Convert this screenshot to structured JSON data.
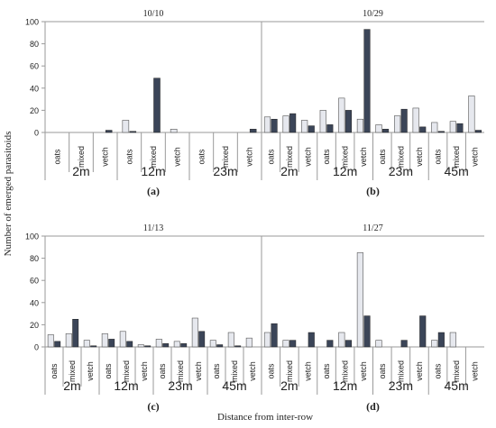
{
  "figure": {
    "y_axis_label": "Number of emerged parasitoids",
    "x_axis_label": "Distance from inter-row",
    "colors": {
      "series_light": "#e6e8ee",
      "series_dark": "#3b4558",
      "stroke": "#555555",
      "axis": "#9a9a9a"
    }
  },
  "chart_data": [
    {
      "type": "bar",
      "panel_label": "(a)",
      "title": "10/10",
      "ylim": [
        0,
        100
      ],
      "yticks": [
        0,
        20,
        40,
        60,
        80,
        100
      ],
      "groups": [
        {
          "label": "2m",
          "categories": [
            "oats",
            "mixed",
            "vetch"
          ],
          "light": [
            0,
            0,
            0
          ],
          "dark": [
            0,
            0,
            2
          ]
        },
        {
          "label": "12m",
          "categories": [
            "oats",
            "mixed",
            "vetch"
          ],
          "light": [
            11,
            0,
            3
          ],
          "dark": [
            1,
            49,
            0
          ]
        },
        {
          "label": "23m",
          "categories": [
            "oats",
            "mixed",
            "vetch"
          ],
          "light": [
            0,
            0,
            0
          ],
          "dark": [
            0,
            0,
            3
          ]
        }
      ]
    },
    {
      "type": "bar",
      "panel_label": "(b)",
      "title": "10/29",
      "ylim": [
        0,
        100
      ],
      "yticks": [
        0,
        20,
        40,
        60,
        80,
        100
      ],
      "groups": [
        {
          "label": "2m",
          "categories": [
            "oats",
            "mixed",
            "vetch"
          ],
          "light": [
            14,
            15,
            11
          ],
          "dark": [
            12,
            17,
            6
          ]
        },
        {
          "label": "12m",
          "categories": [
            "oats",
            "mixed",
            "vetch"
          ],
          "light": [
            20,
            31,
            12
          ],
          "dark": [
            7,
            20,
            93
          ]
        },
        {
          "label": "23m",
          "categories": [
            "oats",
            "mixed",
            "vetch"
          ],
          "light": [
            7,
            15,
            22
          ],
          "dark": [
            3,
            21,
            5
          ]
        },
        {
          "label": "45m",
          "categories": [
            "oats",
            "mixed",
            "vetch"
          ],
          "light": [
            9,
            10,
            33
          ],
          "dark": [
            1,
            8,
            2
          ]
        }
      ]
    },
    {
      "type": "bar",
      "panel_label": "(c)",
      "title": "11/13",
      "ylim": [
        0,
        100
      ],
      "yticks": [
        0,
        20,
        40,
        60,
        80,
        100
      ],
      "groups": [
        {
          "label": "2m",
          "categories": [
            "oats",
            "mixed",
            "vetch"
          ],
          "light": [
            11,
            12,
            6
          ],
          "dark": [
            5,
            25,
            1
          ]
        },
        {
          "label": "12m",
          "categories": [
            "oats",
            "mixed",
            "vetch"
          ],
          "light": [
            12,
            14,
            2
          ],
          "dark": [
            7,
            5,
            1
          ]
        },
        {
          "label": "23m",
          "categories": [
            "oats",
            "mixed",
            "vetch"
          ],
          "light": [
            7,
            5,
            26
          ],
          "dark": [
            3,
            3,
            14
          ]
        },
        {
          "label": "45m",
          "categories": [
            "oats",
            "mixed",
            "vetch"
          ],
          "light": [
            6,
            13,
            8
          ],
          "dark": [
            2,
            1,
            0
          ]
        }
      ]
    },
    {
      "type": "bar",
      "panel_label": "(d)",
      "title": "11/27",
      "ylim": [
        0,
        100
      ],
      "yticks": [
        0,
        20,
        40,
        60,
        80,
        100
      ],
      "groups": [
        {
          "label": "2m",
          "categories": [
            "oats",
            "mixed",
            "vetch"
          ],
          "light": [
            13,
            6,
            0
          ],
          "dark": [
            21,
            6,
            13
          ]
        },
        {
          "label": "12m",
          "categories": [
            "oats",
            "mixed",
            "vetch"
          ],
          "light": [
            0,
            13,
            85
          ],
          "dark": [
            6,
            6,
            28
          ]
        },
        {
          "label": "23m",
          "categories": [
            "oats",
            "mixed",
            "vetch"
          ],
          "light": [
            6,
            0,
            0
          ],
          "dark": [
            0,
            6,
            28
          ]
        },
        {
          "label": "45m",
          "categories": [
            "oats",
            "mixed",
            "vetch"
          ],
          "light": [
            6,
            13,
            0
          ],
          "dark": [
            13,
            0,
            0
          ]
        }
      ]
    }
  ]
}
